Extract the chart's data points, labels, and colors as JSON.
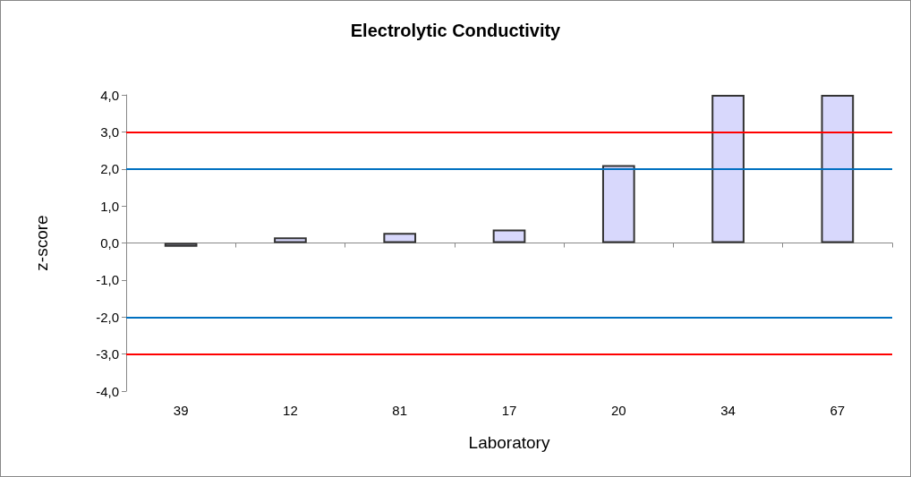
{
  "chart_data": {
    "type": "bar",
    "title": "Electrolytic Conductivity",
    "xlabel": "Laboratory",
    "ylabel": "z-score",
    "categories": [
      "39",
      "12",
      "81",
      "17",
      "20",
      "34",
      "67"
    ],
    "values": [
      -0.1,
      0.15,
      0.27,
      0.36,
      2.1,
      4.0,
      4.0
    ],
    "color": "#d8d8fc",
    "ylim": [
      -4,
      4
    ],
    "yticks": [
      {
        "value": -4,
        "label": "-4,0"
      },
      {
        "value": -3,
        "label": "-3,0"
      },
      {
        "value": -2,
        "label": "-2,0"
      },
      {
        "value": -1,
        "label": "-1,0"
      },
      {
        "value": 0,
        "label": "0,0"
      },
      {
        "value": 1,
        "label": "1,0"
      },
      {
        "value": 2,
        "label": "2,0"
      },
      {
        "value": 3,
        "label": "3,0"
      },
      {
        "value": 4,
        "label": "4,0"
      }
    ],
    "ref_lines": [
      {
        "axis": "y",
        "value": 3,
        "color": "#ff0000"
      },
      {
        "axis": "y",
        "value": -3,
        "color": "#ff0000"
      },
      {
        "axis": "y",
        "value": 2,
        "color": "#0070c0"
      },
      {
        "axis": "y",
        "value": -2,
        "color": "#0070c0"
      }
    ],
    "grid": false
  }
}
